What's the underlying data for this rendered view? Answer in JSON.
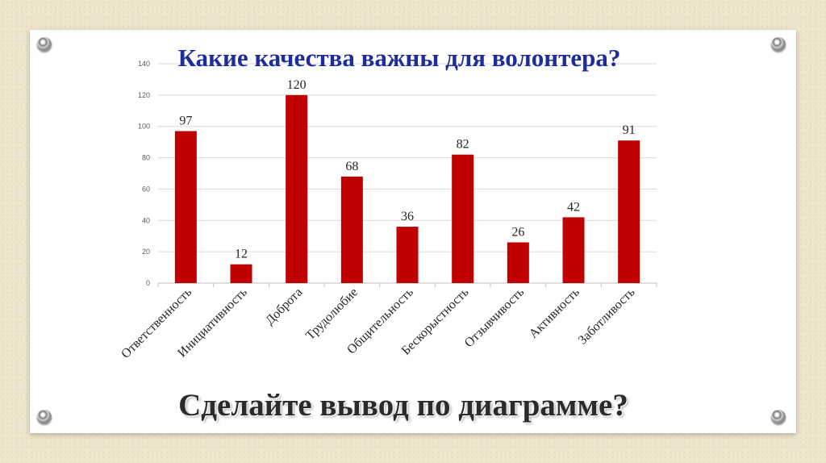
{
  "chart_data": {
    "type": "bar",
    "title": "Какие качества важны для волонтера?",
    "categories": [
      "Ответственность",
      "Инициативность",
      "Доброта",
      "Трудолюбие",
      "Общительность",
      "Бескорыстность",
      "Отзывчивость",
      "Активность",
      "Заботливость"
    ],
    "values": [
      97,
      12,
      120,
      68,
      36,
      82,
      26,
      42,
      91
    ],
    "ylim": [
      0,
      140
    ],
    "yticks": [
      0,
      20,
      40,
      60,
      80,
      100,
      120,
      140
    ],
    "xlabel": "",
    "ylabel": "",
    "grid": true,
    "bar_color": "#c00000",
    "data_labels": true
  },
  "caption": "Сделайте вывод по диаграмме?"
}
